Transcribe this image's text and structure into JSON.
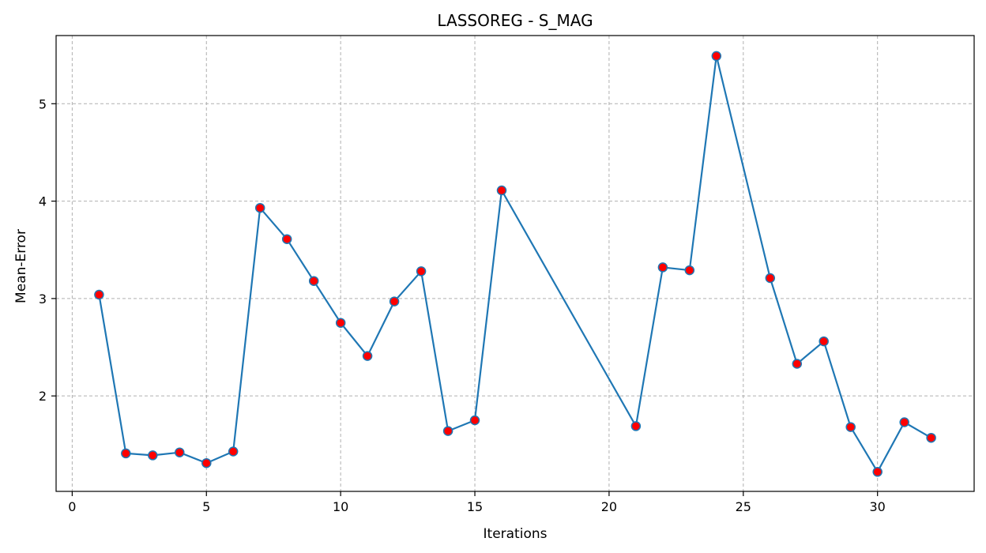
{
  "chart_data": {
    "type": "line",
    "title": "LASSOREG - S_MAG",
    "xlabel": "Iterations",
    "ylabel": "Mean-Error",
    "xlim": [
      -0.6,
      33.6
    ],
    "ylim": [
      1.02,
      5.7
    ],
    "xticks": [
      0,
      5,
      10,
      15,
      20,
      25,
      30
    ],
    "yticks": [
      2,
      3,
      4,
      5
    ],
    "grid": true,
    "line_color": "#1f77b4",
    "marker_face_color": "#ff0000",
    "marker_edge_color": "#1f77b4",
    "series": [
      {
        "x": [
          1,
          2,
          3,
          4,
          5,
          6,
          7,
          8,
          9,
          10,
          11,
          12,
          13,
          14,
          15,
          16,
          21,
          22,
          23,
          24,
          26,
          27,
          28,
          29,
          30,
          31,
          32
        ],
        "y": [
          3.04,
          1.41,
          1.39,
          1.42,
          1.31,
          1.43,
          3.93,
          3.61,
          3.18,
          2.75,
          2.41,
          2.97,
          3.28,
          1.64,
          1.75,
          4.11,
          1.69,
          3.32,
          3.29,
          5.49,
          3.21,
          2.33,
          2.56,
          1.68,
          1.22,
          1.73,
          1.57
        ]
      }
    ]
  }
}
